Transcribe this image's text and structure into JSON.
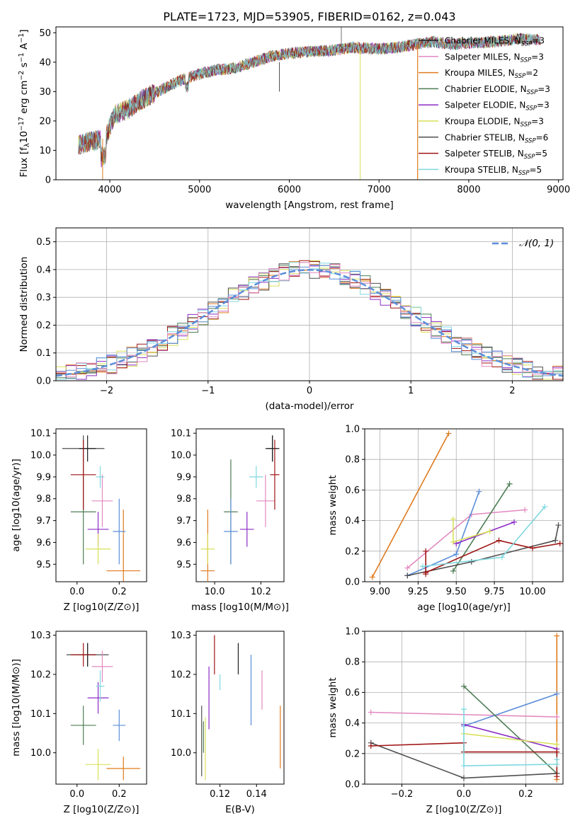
{
  "title": "PLATE=1723, MJD=53905, FIBERID=0162, z=0.043",
  "colors": [
    "#1f1f1f",
    "#e28ac0",
    "#e07b1f",
    "#4e7d55",
    "#8c2cc6",
    "#d9e05a",
    "#4f4f4f",
    "#a01414",
    "#7fd8e0",
    "#5b8ed8"
  ],
  "legend": [
    {
      "label": "Chabrier MILES, N",
      "sub": "SSP",
      "suffix": "=3",
      "color": "#1f1f1f"
    },
    {
      "label": "Salpeter MILES, N",
      "sub": "SSP",
      "suffix": "=3",
      "color": "#e28ac0"
    },
    {
      "label": "Kroupa MILES, N",
      "sub": "SSP",
      "suffix": "=2",
      "color": "#e07b1f"
    },
    {
      "label": "Chabrier ELODIE, N",
      "sub": "SSP",
      "suffix": "=3",
      "color": "#4e7d55"
    },
    {
      "label": "Salpeter ELODIE, N",
      "sub": "SSP",
      "suffix": "=3",
      "color": "#8c2cc6"
    },
    {
      "label": "Kroupa ELODIE, N",
      "sub": "SSP",
      "suffix": "=3",
      "color": "#d9e05a"
    },
    {
      "label": "Chabrier STELIB, N",
      "sub": "SSP",
      "suffix": "=6",
      "color": "#4f4f4f"
    },
    {
      "label": "Salpeter STELIB, N",
      "sub": "SSP",
      "suffix": "=5",
      "color": "#a01414"
    },
    {
      "label": "Kroupa STELIB, N",
      "sub": "SSP",
      "suffix": "=5",
      "color": "#7fd8e0"
    }
  ],
  "chart_data": [
    {
      "type": "line",
      "xlabel": "wavelength [Angstrom, rest frame]",
      "ylabel_parts": [
        "Flux [f",
        "λ",
        "10",
        "−17",
        " erg cm",
        "−2",
        " s",
        "−1",
        " A",
        "−1",
        "]"
      ],
      "xlim": [
        3400,
        9050
      ],
      "ylim": [
        0,
        52
      ],
      "xticks": [
        4000,
        5000,
        6000,
        7000,
        8000,
        9000
      ],
      "yticks": [
        0,
        10,
        20,
        30,
        40,
        50
      ],
      "continuum": [
        [
          3650,
          12
        ],
        [
          3800,
          13
        ],
        [
          3950,
          14
        ],
        [
          4050,
          22
        ],
        [
          4200,
          24
        ],
        [
          4400,
          28
        ],
        [
          4600,
          31
        ],
        [
          4800,
          34
        ],
        [
          5000,
          36
        ],
        [
          5200,
          37.5
        ],
        [
          5400,
          38
        ],
        [
          5600,
          40
        ],
        [
          5800,
          42
        ],
        [
          6000,
          43
        ],
        [
          6200,
          43.5
        ],
        [
          6500,
          44
        ],
        [
          6700,
          45
        ],
        [
          7000,
          44.5
        ],
        [
          7200,
          45
        ],
        [
          7400,
          46
        ],
        [
          7600,
          47
        ],
        [
          7800,
          46
        ],
        [
          8000,
          46.5
        ],
        [
          8300,
          47
        ],
        [
          8600,
          48
        ],
        [
          8800,
          47.5
        ]
      ],
      "drops": [
        [
          3920,
          0
        ],
        [
          5890,
          30
        ],
        [
          6790,
          0
        ],
        [
          7430,
          0
        ]
      ]
    },
    {
      "type": "step",
      "xlabel": "(data-model)/error",
      "ylabel": "Normed distribution",
      "xlim": [
        -2.5,
        2.5
      ],
      "ylim": [
        0,
        0.55
      ],
      "xticks": [
        -2,
        -1,
        0,
        1,
        2
      ],
      "yticks": [
        0.0,
        0.1,
        0.2,
        0.3,
        0.4,
        0.5
      ],
      "legend_label": "𝒩(0, 1)",
      "reference": "normal(0,1)",
      "bin_width": 0.1,
      "series_count": 9
    },
    {
      "type": "scatter",
      "xlabel": "Z [log10(Z/Z⊙)]",
      "ylabel": "age [log10(age/yr)]",
      "xlim": [
        -0.1,
        0.33
      ],
      "ylim": [
        9.42,
        10.12
      ],
      "xticks": [
        0.0,
        0.2
      ],
      "yticks": [
        9.5,
        9.6,
        9.7,
        9.8,
        9.9,
        10.0,
        10.1
      ],
      "points": [
        [
          0.03,
          10.03
        ],
        [
          0.12,
          9.79
        ],
        [
          0.22,
          9.47
        ],
        [
          0.03,
          9.74
        ],
        [
          0.1,
          9.66
        ],
        [
          0.1,
          9.57
        ],
        [
          0.05,
          10.03
        ],
        [
          0.03,
          9.91
        ],
        [
          0.11,
          9.9
        ],
        [
          0.2,
          9.65
        ]
      ]
    },
    {
      "type": "scatter",
      "xlabel": "mass [log10(M/M⊙)]",
      "ylabel": "",
      "xlim": [
        9.92,
        10.3
      ],
      "ylim": [
        9.42,
        10.12
      ],
      "xticks": [
        10.0,
        10.2
      ],
      "points": [
        [
          10.25,
          10.03
        ],
        [
          10.22,
          9.79
        ],
        [
          9.97,
          9.47
        ],
        [
          10.07,
          9.74
        ],
        [
          10.14,
          9.66
        ],
        [
          9.97,
          9.57
        ],
        [
          10.25,
          10.03
        ],
        [
          10.26,
          9.91
        ],
        [
          10.18,
          9.9
        ],
        [
          10.07,
          9.65
        ]
      ]
    },
    {
      "type": "line",
      "xlabel": "age  [log10(age/yr)]",
      "ylabel": "mass weight",
      "xlim": [
        8.9,
        10.2
      ],
      "ylim": [
        0,
        1.0
      ],
      "xticks": [
        9.0,
        9.25,
        9.5,
        9.75,
        10.0
      ],
      "yticks": [
        0.0,
        0.2,
        0.4,
        0.6,
        0.8,
        1.0
      ]
    },
    {
      "type": "scatter",
      "xlabel": "Z [log10(Z/Z⊙)]",
      "ylabel": "mass [log10(M/M⊙)]",
      "xlim": [
        -0.1,
        0.33
      ],
      "ylim": [
        9.92,
        10.31
      ],
      "xticks": [
        0.0,
        0.2
      ],
      "yticks": [
        10.0,
        10.1,
        10.2,
        10.3
      ]
    },
    {
      "type": "scatter",
      "xlabel": "E(B-V)",
      "ylabel": "",
      "xlim": [
        0.107,
        0.155
      ],
      "ylim": [
        9.92,
        10.31
      ],
      "xticks": [
        0.12,
        0.14
      ],
      "points": [
        [
          0.11,
          10.03
        ],
        [
          0.143,
          10.16
        ],
        [
          0.153,
          10.04
        ],
        [
          0.111,
          10.04
        ],
        [
          0.114,
          10.14
        ],
        [
          0.112,
          10.01
        ],
        [
          0.13,
          10.24
        ],
        [
          0.117,
          10.25
        ],
        [
          0.12,
          10.18
        ],
        [
          0.137,
          10.16
        ]
      ]
    },
    {
      "type": "line",
      "xlabel": "Z [log10(Z/Z⊙)]",
      "ylabel": "mass weight",
      "xlim": [
        -0.32,
        0.32
      ],
      "ylim": [
        0,
        1.0
      ],
      "xticks": [
        -0.2,
        0.0,
        0.2
      ],
      "yticks": [
        0.0,
        0.2,
        0.4,
        0.6,
        0.8,
        1.0
      ]
    }
  ]
}
